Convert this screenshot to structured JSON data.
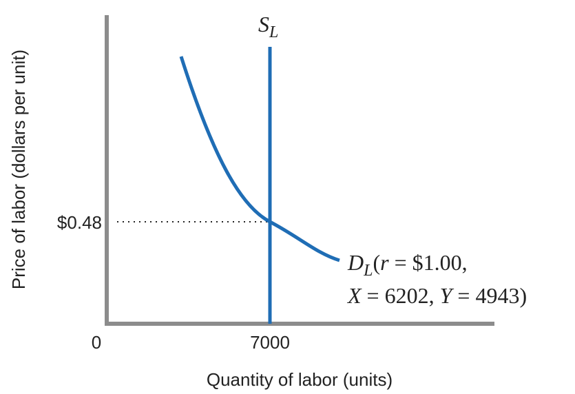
{
  "diagram": {
    "y_axis_label": "Price of labor (dollars per unit)",
    "x_axis_label": "Quantity of labor (units)",
    "origin_label": "0",
    "price_label": "$0.48",
    "quantity_label": "7000",
    "supply_label": {
      "symbol": "S",
      "subscript": "L"
    },
    "demand_label": {
      "line1": {
        "symbol": "D",
        "subscript": "L",
        "open": "(",
        "var": "r",
        "rest": " = $1.00,"
      },
      "line2": {
        "var1": "X",
        "mid": " = 6202, ",
        "var2": "Y",
        "rest": " = 4943)"
      }
    }
  }
}
